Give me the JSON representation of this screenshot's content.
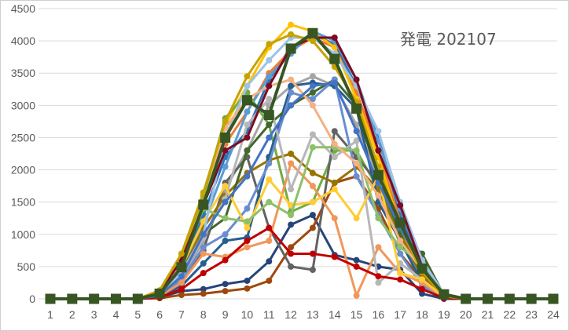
{
  "chart_data": {
    "type": "line",
    "title": "発電 202107",
    "xlabel": "",
    "ylabel": "",
    "ylim": [
      0,
      4500
    ],
    "ytick_step": 500,
    "yticks": [
      "0",
      "500",
      "1000",
      "1500",
      "2000",
      "2500",
      "3000",
      "3500",
      "4000",
      "4500"
    ],
    "categories": [
      "1",
      "2",
      "3",
      "4",
      "5",
      "6",
      "7",
      "8",
      "9",
      "10",
      "11",
      "12",
      "13",
      "14",
      "15",
      "16",
      "17",
      "18",
      "19",
      "20",
      "21",
      "22",
      "23",
      "24"
    ],
    "grid": "horizontal",
    "legend": "none",
    "series": [
      {
        "color": "#2e75b6",
        "values": [
          0,
          0,
          0,
          0,
          0,
          80,
          450,
          1300,
          2200,
          2600,
          3400,
          3900,
          4100,
          3950,
          3300,
          2500,
          1300,
          450,
          60,
          0,
          0,
          0,
          0,
          0
        ]
      },
      {
        "color": "#ed7d31",
        "values": [
          0,
          0,
          0,
          0,
          0,
          100,
          600,
          1500,
          2400,
          2900,
          3500,
          3850,
          4050,
          3900,
          3200,
          2300,
          1200,
          400,
          50,
          0,
          0,
          0,
          0,
          0
        ]
      },
      {
        "color": "#a5a5a5",
        "values": [
          0,
          0,
          0,
          0,
          0,
          50,
          300,
          900,
          1700,
          2300,
          3000,
          3300,
          3450,
          3300,
          2700,
          1900,
          900,
          300,
          30,
          0,
          0,
          0,
          0,
          0
        ]
      },
      {
        "color": "#ffc000",
        "values": [
          0,
          0,
          0,
          0,
          0,
          120,
          650,
          1600,
          2700,
          3300,
          3900,
          4250,
          4150,
          3900,
          3100,
          2200,
          1100,
          350,
          40,
          0,
          0,
          0,
          0,
          0
        ]
      },
      {
        "color": "#5b9bd5",
        "values": [
          0,
          0,
          0,
          0,
          0,
          60,
          420,
          1150,
          2050,
          2900,
          3450,
          3800,
          4150,
          4000,
          3400,
          2450,
          1400,
          500,
          70,
          0,
          0,
          0,
          0,
          0
        ]
      },
      {
        "color": "#70ad47",
        "values": [
          0,
          0,
          0,
          0,
          0,
          130,
          700,
          1600,
          2800,
          3200,
          2700,
          1350,
          1500,
          2300,
          2300,
          1700,
          850,
          380,
          40,
          0,
          0,
          0,
          0,
          0
        ]
      },
      {
        "color": "#264478",
        "values": [
          0,
          0,
          0,
          0,
          0,
          20,
          120,
          150,
          230,
          280,
          580,
          1150,
          1300,
          680,
          600,
          500,
          450,
          80,
          0,
          0,
          0,
          0,
          0,
          0
        ]
      },
      {
        "color": "#9e480e",
        "values": [
          0,
          0,
          0,
          0,
          0,
          10,
          60,
          80,
          120,
          160,
          280,
          800,
          1100,
          1800,
          1900,
          1400,
          700,
          300,
          20,
          0,
          0,
          0,
          0,
          0
        ]
      },
      {
        "color": "#636363",
        "values": [
          0,
          0,
          0,
          0,
          0,
          40,
          250,
          750,
          1800,
          2200,
          1100,
          500,
          450,
          2600,
          2200,
          1800,
          1000,
          350,
          30,
          0,
          0,
          0,
          0,
          0
        ]
      },
      {
        "color": "#997300",
        "values": [
          0,
          0,
          0,
          0,
          0,
          80,
          400,
          1100,
          1600,
          1950,
          2150,
          2250,
          1950,
          1800,
          2050,
          1700,
          1000,
          380,
          40,
          0,
          0,
          0,
          0,
          0
        ]
      },
      {
        "color": "#255e91",
        "values": [
          0,
          0,
          0,
          0,
          0,
          30,
          200,
          550,
          900,
          950,
          2200,
          3300,
          3350,
          3300,
          2950,
          1500,
          900,
          250,
          20,
          0,
          0,
          0,
          0,
          0
        ]
      },
      {
        "color": "#43682b",
        "values": [
          0,
          0,
          0,
          0,
          0,
          60,
          380,
          1000,
          1250,
          2300,
          2700,
          3000,
          3200,
          3400,
          3000,
          1900,
          1000,
          700,
          60,
          0,
          0,
          0,
          0,
          0
        ]
      },
      {
        "color": "#698ed0",
        "values": [
          0,
          0,
          0,
          0,
          0,
          50,
          300,
          800,
          1000,
          1400,
          2100,
          3200,
          3100,
          3400,
          1900,
          1300,
          700,
          200,
          10,
          0,
          0,
          0,
          0,
          0
        ]
      },
      {
        "color": "#f1975a",
        "values": [
          0,
          0,
          0,
          0,
          0,
          40,
          250,
          700,
          650,
          800,
          900,
          2100,
          1750,
          1250,
          50,
          800,
          400,
          250,
          20,
          0,
          0,
          0,
          0,
          0
        ]
      },
      {
        "color": "#b7b7b7",
        "values": [
          0,
          0,
          0,
          0,
          0,
          50,
          350,
          950,
          1550,
          2700,
          3100,
          1700,
          2550,
          2200,
          2450,
          250,
          550,
          300,
          20,
          0,
          0,
          0,
          0,
          0
        ]
      },
      {
        "color": "#ffcd33",
        "values": [
          0,
          0,
          0,
          0,
          0,
          70,
          500,
          1200,
          1750,
          1100,
          1850,
          1450,
          1500,
          1700,
          1250,
          1900,
          400,
          300,
          30,
          0,
          0,
          0,
          0,
          0
        ]
      },
      {
        "color": "#8cc168",
        "values": [
          0,
          0,
          0,
          0,
          0,
          90,
          550,
          1400,
          1250,
          1200,
          1500,
          1300,
          2350,
          2350,
          2300,
          1250,
          800,
          550,
          50,
          0,
          0,
          0,
          0,
          0
        ]
      },
      {
        "color": "#9dc3e6",
        "values": [
          0,
          0,
          0,
          0,
          0,
          60,
          400,
          1000,
          2500,
          3300,
          3700,
          4050,
          4050,
          3800,
          3300,
          2600,
          1500,
          600,
          80,
          0,
          0,
          0,
          0,
          0
        ]
      },
      {
        "color": "#f4b183",
        "values": [
          0,
          0,
          0,
          0,
          0,
          100,
          550,
          1450,
          2650,
          3100,
          3300,
          3400,
          3000,
          2400,
          2100,
          1600,
          900,
          450,
          60,
          0,
          0,
          0,
          0,
          0
        ]
      },
      {
        "color": "#c00000",
        "values": [
          0,
          0,
          0,
          0,
          0,
          20,
          150,
          400,
          600,
          900,
          1100,
          700,
          700,
          650,
          500,
          350,
          300,
          150,
          10,
          0,
          0,
          0,
          0,
          0
        ]
      },
      {
        "color": "#7b0c23",
        "values": [
          0,
          0,
          0,
          0,
          0,
          110,
          600,
          1450,
          2300,
          2500,
          3300,
          3900,
          4050,
          4050,
          3400,
          2300,
          1450,
          500,
          50,
          0,
          0,
          0,
          0,
          0
        ]
      },
      {
        "color": "#c8a200",
        "values": [
          0,
          0,
          0,
          0,
          0,
          130,
          700,
          1650,
          2750,
          3450,
          3950,
          4100,
          4000,
          3600,
          3050,
          2050,
          1100,
          420,
          40,
          0,
          0,
          0,
          0,
          0
        ]
      },
      {
        "color": "#4472c4",
        "values": [
          0,
          0,
          0,
          0,
          0,
          50,
          350,
          1000,
          1500,
          1900,
          2500,
          3000,
          3300,
          3350,
          2600,
          1800,
          1100,
          500,
          60,
          0,
          0,
          0,
          0,
          0
        ]
      },
      {
        "color": "#375623",
        "values": [
          0,
          0,
          0,
          0,
          0,
          80,
          490,
          1460,
          2500,
          3080,
          2850,
          3880,
          4120,
          3720,
          2950,
          1920,
          1180,
          470,
          70,
          0,
          0,
          0,
          0,
          0
        ]
      }
    ]
  }
}
